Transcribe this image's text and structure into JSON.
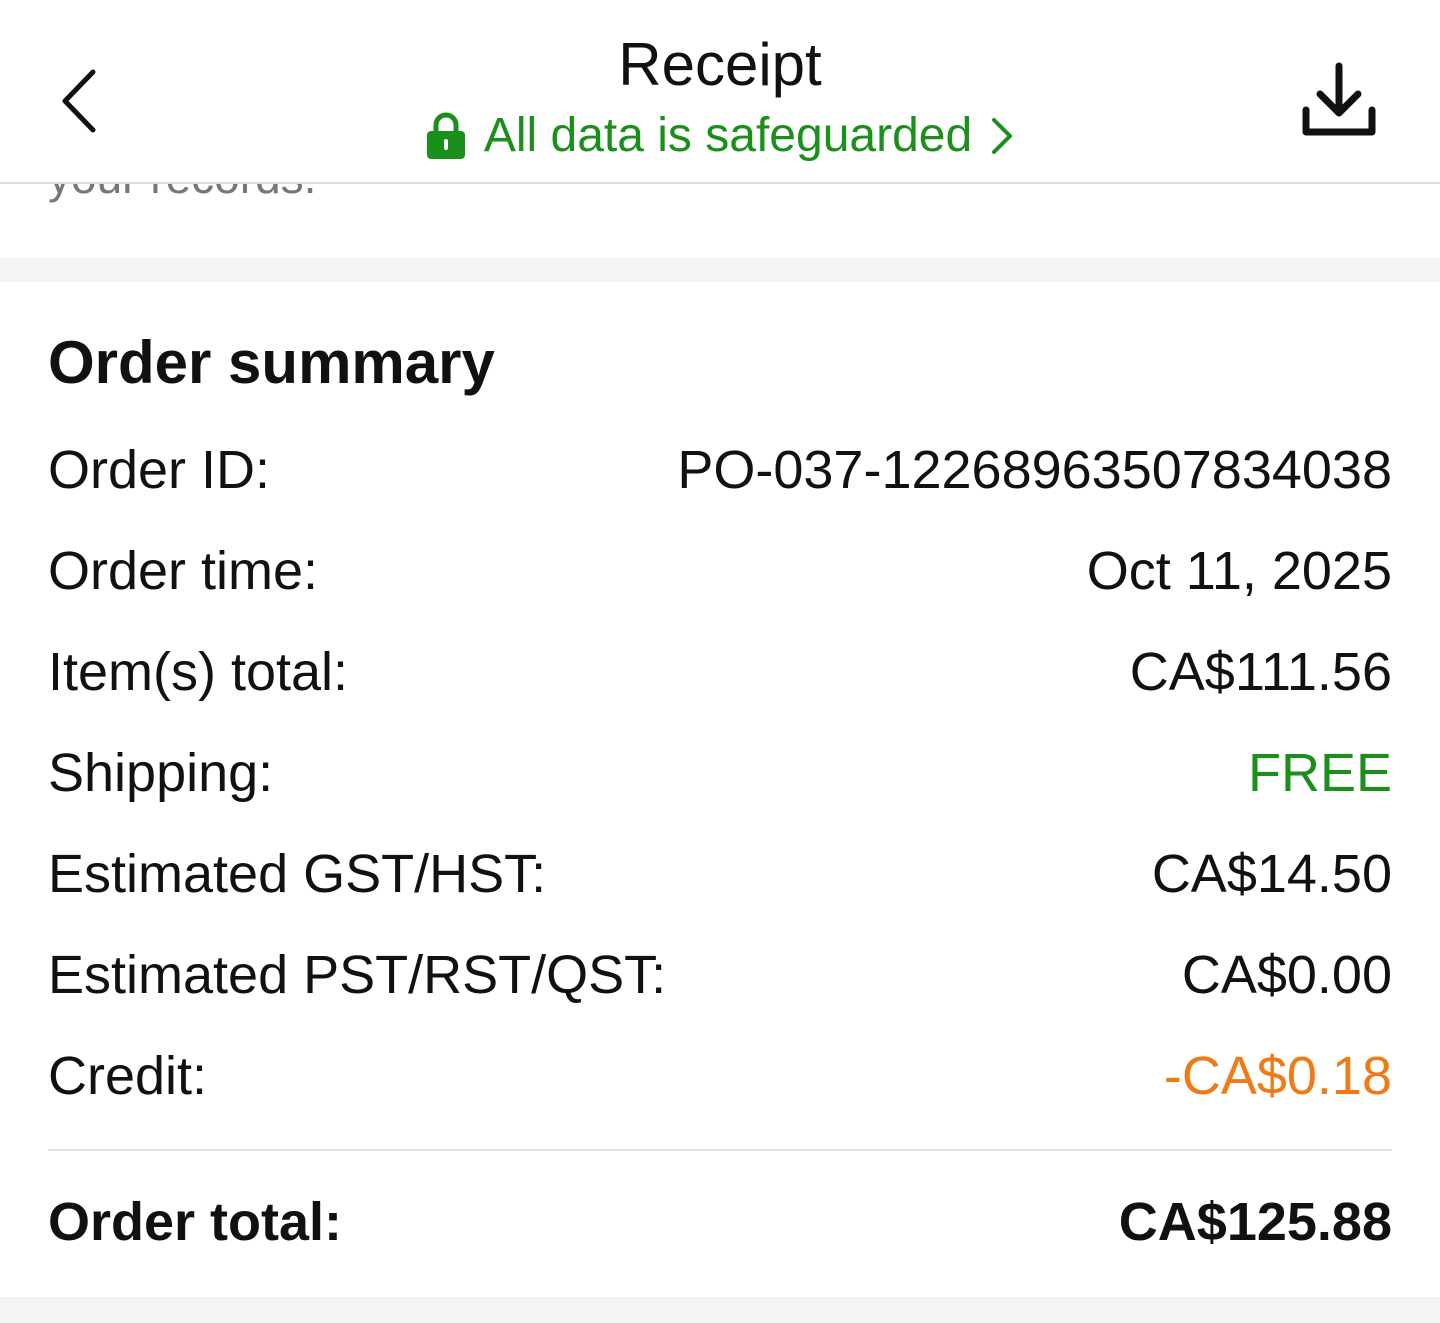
{
  "header": {
    "title": "Receipt",
    "safeguard": "All data is safeguarded",
    "icons": [
      "back-chevron-icon",
      "lock-icon",
      "chevron-right-icon",
      "download-icon"
    ]
  },
  "clipped_text": "your records.",
  "summary": {
    "heading": "Order summary",
    "rows": [
      {
        "label": "Order ID:",
        "value": "PO-037-12268963507834038"
      },
      {
        "label": "Order time:",
        "value": "Oct 11, 2025"
      },
      {
        "label": "Item(s) total:",
        "value": "CA$111.56"
      },
      {
        "label": "Shipping:",
        "value": "FREE",
        "color": "#1a8f1a"
      },
      {
        "label": "Estimated GST/HST:",
        "value": "CA$14.50"
      },
      {
        "label": "Estimated PST/RST/QST:",
        "value": "CA$0.00"
      },
      {
        "label": "Credit:",
        "value": "-CA$0.18",
        "color": "#f07b16"
      }
    ],
    "total": {
      "label": "Order total:",
      "value": "CA$125.88"
    }
  }
}
